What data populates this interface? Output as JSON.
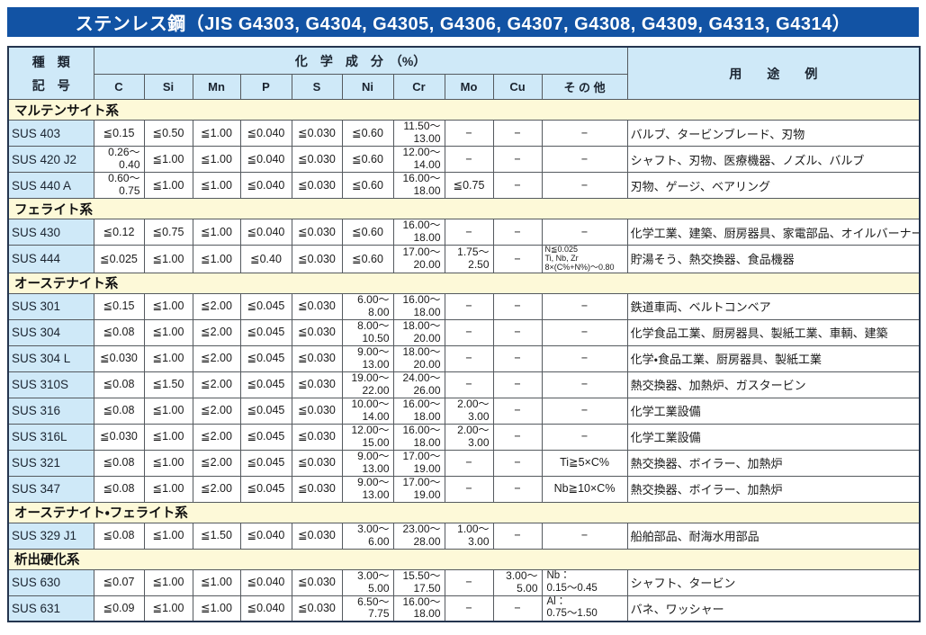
{
  "title": "ステンレス鋼（JIS G4303, G4304, G4305, G4306, G4307, G4308, G4309, G4313, G4314）",
  "colors": {
    "title_bg": "#1253a4",
    "header_bg": "#cfe9f8",
    "section_bg": "#fdf9d8",
    "grade_bg": "#cfe9f8",
    "border_outer": "#24354f",
    "border_inner": "#555a5f"
  },
  "table": {
    "header": {
      "col1_line1": "種　類",
      "col1_line2": "記　号",
      "chem_group": "化　学　成　分　（%）",
      "usage": "用　　途　　例",
      "elements": [
        "C",
        "Si",
        "Mn",
        "P",
        "S",
        "Ni",
        "Cr",
        "Mo",
        "Cu",
        "そ の 他"
      ]
    },
    "sections": [
      {
        "name": "マルテンサイト系",
        "rows": [
          {
            "grade": "SUS 403",
            "values": [
              "≦0.15",
              "≦0.50",
              "≦1.00",
              "≦0.040",
              "≦0.030",
              "≦0.60",
              "11.50～\n13.00",
              "−",
              "−",
              "−"
            ],
            "usage": "バルブ、タービンブレード、刃物"
          },
          {
            "grade": "SUS 420 J2",
            "values": [
              "0.26～\n0.40",
              "≦1.00",
              "≦1.00",
              "≦0.040",
              "≦0.030",
              "≦0.60",
              "12.00～\n14.00",
              "−",
              "−",
              "−"
            ],
            "usage": "シャフト、刃物、医療機器、ノズル、バルブ"
          },
          {
            "grade": "SUS 440 A",
            "values": [
              "0.60～\n0.75",
              "≦1.00",
              "≦1.00",
              "≦0.040",
              "≦0.030",
              "≦0.60",
              "16.00～\n18.00",
              "≦0.75",
              "−",
              "−"
            ],
            "usage": "刃物、ゲージ、ベアリング"
          }
        ]
      },
      {
        "name": "フェライト系",
        "rows": [
          {
            "grade": "SUS 430",
            "values": [
              "≦0.12",
              "≦0.75",
              "≦1.00",
              "≦0.040",
              "≦0.030",
              "≦0.60",
              "16.00～\n18.00",
              "−",
              "−",
              "−"
            ],
            "usage": "化学工業、建築、厨房器具、家電部品、オイルバーナー部品"
          },
          {
            "grade": "SUS 444",
            "values": [
              "≦0.025",
              "≦1.00",
              "≦1.00",
              "≦0.40",
              "≦0.030",
              "≦0.60",
              "17.00～\n20.00",
              "1.75～\n2.50",
              "−",
              "N≦0.025\nTi, Nb, Zr\n8×(C%+N%)～0.80"
            ],
            "usage": "貯湯そう、熱交換器、食品機器"
          }
        ]
      },
      {
        "name": "オーステナイト系",
        "rows": [
          {
            "grade": "SUS 301",
            "values": [
              "≦0.15",
              "≦1.00",
              "≦2.00",
              "≦0.045",
              "≦0.030",
              "6.00～\n8.00",
              "16.00～\n18.00",
              "−",
              "−",
              "−"
            ],
            "usage": "鉄道車両、ベルトコンベア"
          },
          {
            "grade": "SUS 304",
            "values": [
              "≦0.08",
              "≦1.00",
              "≦2.00",
              "≦0.045",
              "≦0.030",
              "8.00～\n10.50",
              "18.00～\n20.00",
              "−",
              "−",
              "−"
            ],
            "usage": "化学食品工業、厨房器具、製紙工業、車輌、建築"
          },
          {
            "grade": "SUS 304 L",
            "values": [
              "≦0.030",
              "≦1.00",
              "≦2.00",
              "≦0.045",
              "≦0.030",
              "9.00～\n13.00",
              "18.00～\n20.00",
              "−",
              "−",
              "−"
            ],
            "usage": "化学・食品工業、厨房器具、製紙工業"
          },
          {
            "grade": "SUS 310S",
            "values": [
              "≦0.08",
              "≦1.50",
              "≦2.00",
              "≦0.045",
              "≦0.030",
              "19.00～\n22.00",
              "24.00～\n26.00",
              "−",
              "−",
              "−"
            ],
            "usage": "熱交換器、加熱炉、ガスタービン"
          },
          {
            "grade": "SUS 316",
            "values": [
              "≦0.08",
              "≦1.00",
              "≦2.00",
              "≦0.045",
              "≦0.030",
              "10.00～\n14.00",
              "16.00～\n18.00",
              "2.00～\n3.00",
              "−",
              "−"
            ],
            "usage": "化学工業設備"
          },
          {
            "grade": "SUS 316L",
            "values": [
              "≦0.030",
              "≦1.00",
              "≦2.00",
              "≦0.045",
              "≦0.030",
              "12.00～\n15.00",
              "16.00～\n18.00",
              "2.00～\n3.00",
              "−",
              "−"
            ],
            "usage": "化学工業設備"
          },
          {
            "grade": "SUS 321",
            "values": [
              "≦0.08",
              "≦1.00",
              "≦2.00",
              "≦0.045",
              "≦0.030",
              "9.00～\n13.00",
              "17.00～\n19.00",
              "−",
              "−",
              "Ti≧5×C%"
            ],
            "usage": "熱交換器、ボイラー、加熱炉"
          },
          {
            "grade": "SUS 347",
            "values": [
              "≦0.08",
              "≦1.00",
              "≦2.00",
              "≦0.045",
              "≦0.030",
              "9.00～\n13.00",
              "17.00～\n19.00",
              "−",
              "−",
              "Nb≧10×C%"
            ],
            "usage": "熱交換器、ボイラー、加熱炉"
          }
        ]
      },
      {
        "name": "オーステナイト・フェライト系",
        "rows": [
          {
            "grade": "SUS 329 J1",
            "values": [
              "≦0.08",
              "≦1.00",
              "≦1.50",
              "≦0.040",
              "≦0.030",
              "3.00～\n6.00",
              "23.00～\n28.00",
              "1.00～\n3.00",
              "−",
              "−"
            ],
            "usage": "船舶部品、耐海水用部品"
          }
        ]
      },
      {
        "name": "析出硬化系",
        "rows": [
          {
            "grade": "SUS 630",
            "values": [
              "≦0.07",
              "≦1.00",
              "≦1.00",
              "≦0.040",
              "≦0.030",
              "3.00～\n5.00",
              "15.50～\n17.50",
              "−",
              "3.00～\n5.00",
              "Nb：\n0.15～0.45"
            ],
            "usage": "シャフト、タービン"
          },
          {
            "grade": "SUS 631",
            "values": [
              "≦0.09",
              "≦1.00",
              "≦1.00",
              "≦0.040",
              "≦0.030",
              "6.50～\n7.75",
              "16.00～\n18.00",
              "−",
              "−",
              "Al：\n0.75～1.50"
            ],
            "usage": "バネ、ワッシャー"
          }
        ]
      }
    ]
  }
}
